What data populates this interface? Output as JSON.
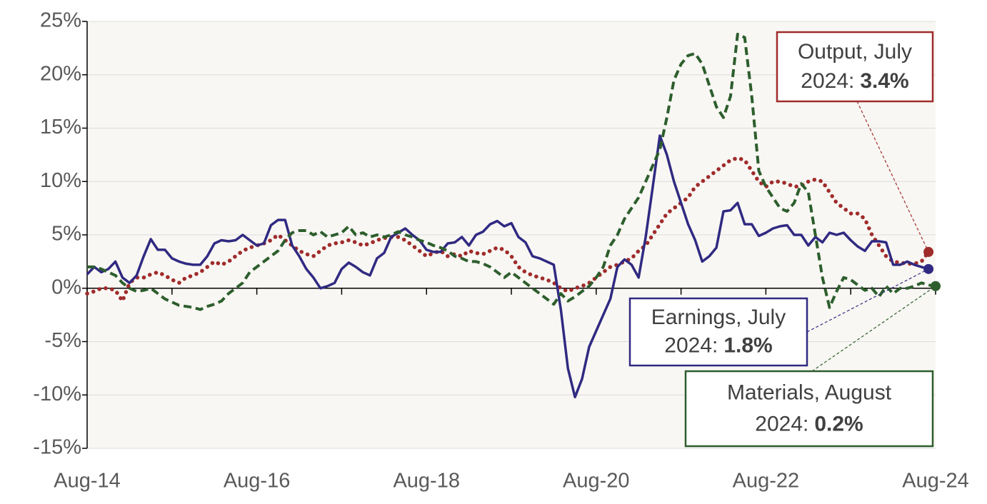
{
  "chart_data": {
    "type": "line",
    "categories": [
      "Aug-14",
      null,
      null,
      null,
      null,
      null,
      null,
      null,
      null,
      null,
      null,
      null,
      null,
      null,
      null,
      null,
      null,
      null,
      null,
      null,
      null,
      null,
      null,
      null,
      "Aug-16",
      null,
      null,
      null,
      null,
      null,
      null,
      null,
      null,
      null,
      null,
      null,
      null,
      null,
      null,
      null,
      null,
      null,
      null,
      null,
      null,
      null,
      null,
      null,
      "Aug-18",
      null,
      null,
      null,
      null,
      null,
      null,
      null,
      null,
      null,
      null,
      null,
      null,
      null,
      null,
      null,
      null,
      null,
      null,
      null,
      null,
      null,
      null,
      null,
      "Aug-20",
      null,
      null,
      null,
      null,
      null,
      null,
      null,
      null,
      null,
      null,
      null,
      null,
      null,
      null,
      null,
      null,
      null,
      null,
      null,
      null,
      null,
      null,
      null,
      "Aug-22",
      null,
      null,
      null,
      null,
      null,
      null,
      null,
      null,
      null,
      null,
      null,
      null,
      null,
      null,
      null,
      null,
      null,
      null,
      null,
      null,
      null,
      null,
      null,
      "Aug-24"
    ],
    "series": [
      {
        "name": "Output",
        "color": "#a02b2b",
        "style": "dotted",
        "values": [
          -0.5,
          -0.3,
          0.0,
          0.0,
          -0.2,
          -1.2,
          0.5,
          1.0,
          1.0,
          1.3,
          1.5,
          1.2,
          0.8,
          0.5,
          1.0,
          1.2,
          1.5,
          2.0,
          2.5,
          2.2,
          2.5,
          3.0,
          3.5,
          3.8,
          4.0,
          4.2,
          4.5,
          5.0,
          4.5,
          4.0,
          3.5,
          3.2,
          3.0,
          3.5,
          4.0,
          4.2,
          4.3,
          4.5,
          4.3,
          4.0,
          4.2,
          4.5,
          4.7,
          4.8,
          4.8,
          4.5,
          4.0,
          3.5,
          3.0,
          3.3,
          3.5,
          3.0,
          3.2,
          3.0,
          3.5,
          3.3,
          3.2,
          3.5,
          3.8,
          3.6,
          3.0,
          2.0,
          1.5,
          1.2,
          1.0,
          0.8,
          0.5,
          0.0,
          -0.3,
          0.0,
          0.2,
          0.5,
          1.0,
          1.5,
          2.0,
          2.2,
          2.5,
          2.8,
          3.5,
          4.0,
          5.0,
          6.0,
          7.0,
          7.5,
          8.0,
          8.5,
          9.5,
          10.0,
          10.5,
          11.0,
          11.5,
          12.0,
          12.2,
          12.0,
          11.0,
          10.0,
          9.5,
          10.0,
          10.0,
          9.8,
          9.5,
          9.6,
          10.0,
          10.2,
          10.0,
          9.0,
          8.0,
          7.5,
          7.0,
          7.0,
          6.5,
          5.0,
          4.0,
          3.0,
          2.5,
          2.4,
          2.3,
          2.3,
          2.5,
          3.4,
          null
        ]
      },
      {
        "name": "Earnings",
        "color": "#302a82",
        "style": "solid",
        "values": [
          1.3,
          2.0,
          1.5,
          1.8,
          2.5,
          1.0,
          0.5,
          1.2,
          3.0,
          4.6,
          3.6,
          3.6,
          2.8,
          2.5,
          2.3,
          2.2,
          2.2,
          3.0,
          4.2,
          4.5,
          4.4,
          4.5,
          5.0,
          4.5,
          4.0,
          4.2,
          5.9,
          6.4,
          6.4,
          4.0,
          3.0,
          1.8,
          1.0,
          0.0,
          0.2,
          0.5,
          1.8,
          2.4,
          2.0,
          1.5,
          1.2,
          2.8,
          3.3,
          4.8,
          5.2,
          5.6,
          5.0,
          4.5,
          3.6,
          3.4,
          3.4,
          4.2,
          4.3,
          4.8,
          4.0,
          5.0,
          5.3,
          6.0,
          6.3,
          5.8,
          6.1,
          4.8,
          4.3,
          3.0,
          2.8,
          2.5,
          2.2,
          -2.0,
          -7.5,
          -10.2,
          -8.5,
          -5.5,
          -4.0,
          -2.5,
          -1.0,
          2.0,
          2.7,
          2.2,
          1.0,
          4.8,
          9.5,
          14.3,
          12.5,
          10.0,
          8.0,
          6.0,
          4.5,
          2.5,
          3.0,
          3.8,
          7.2,
          7.3,
          8.0,
          6.0,
          6.0,
          4.9,
          5.2,
          5.6,
          5.8,
          5.9,
          5.0,
          5.0,
          4.0,
          4.8,
          4.3,
          5.2,
          5.0,
          5.2,
          4.5,
          3.9,
          3.5,
          4.4,
          4.4,
          4.3,
          2.2,
          2.2,
          2.5,
          2.2,
          2.0,
          1.8,
          null
        ]
      },
      {
        "name": "Materials",
        "color": "#2d5e2d",
        "style": "dashed",
        "values": [
          2.0,
          2.0,
          1.8,
          1.5,
          1.2,
          0.5,
          0.0,
          -0.3,
          -0.2,
          0.0,
          -0.5,
          -1.0,
          -1.3,
          -1.6,
          -1.7,
          -1.8,
          -2.0,
          -1.7,
          -1.5,
          -1.2,
          -0.5,
          0.0,
          0.5,
          1.5,
          2.0,
          2.5,
          3.0,
          3.5,
          4.5,
          5.2,
          5.4,
          5.4,
          5.0,
          5.3,
          4.8,
          5.0,
          5.2,
          5.8,
          5.0,
          5.2,
          4.8,
          5.0,
          4.8,
          5.0,
          5.3,
          5.0,
          4.8,
          4.5,
          4.3,
          4.0,
          3.8,
          3.5,
          3.0,
          2.8,
          2.5,
          2.5,
          2.3,
          2.0,
          1.5,
          1.0,
          1.5,
          1.0,
          0.5,
          0.0,
          -0.5,
          -1.0,
          -1.5,
          -0.5,
          -1.2,
          -0.8,
          -0.3,
          0.2,
          1.0,
          2.0,
          4.0,
          5.0,
          6.5,
          7.5,
          8.5,
          10.0,
          11.5,
          13.0,
          16.0,
          19.5,
          21.0,
          21.8,
          22.0,
          21.0,
          19.0,
          17.0,
          16.0,
          18.0,
          23.8,
          23.5,
          18.0,
          11.0,
          9.5,
          8.5,
          7.5,
          7.2,
          8.0,
          9.8,
          9.0,
          5.0,
          1.0,
          -1.8,
          -0.3,
          1.0,
          0.8,
          0.3,
          -0.2,
          0.0,
          -0.8,
          0.2,
          -0.5,
          0.0,
          0.0,
          0.2,
          0.5,
          0.3,
          0.2
        ]
      }
    ],
    "annotations": [
      {
        "lines": [
          "Output, July",
          "2024:"
        ],
        "label": "3.4%",
        "color": "#a02b2b"
      },
      {
        "lines": [
          "Earnings, July",
          "2024:"
        ],
        "label": "1.8%",
        "color": "#302a82"
      },
      {
        "lines": [
          "Materials, August",
          "2024:"
        ],
        "label": "0.2%",
        "color": "#2d5e2d"
      }
    ],
    "ylim": [
      -15,
      25
    ],
    "yticks": [
      {
        "value": -15,
        "label": "-15%"
      },
      {
        "value": -10,
        "label": "-10%"
      },
      {
        "value": -5,
        "label": "-5%"
      },
      {
        "value": 0,
        "label": "0%"
      },
      {
        "value": 5,
        "label": "5%"
      },
      {
        "value": 10,
        "label": "10%"
      },
      {
        "value": 15,
        "label": "15%"
      },
      {
        "value": 20,
        "label": "20%"
      },
      {
        "value": 25,
        "label": "25%"
      }
    ],
    "grid": true
  }
}
